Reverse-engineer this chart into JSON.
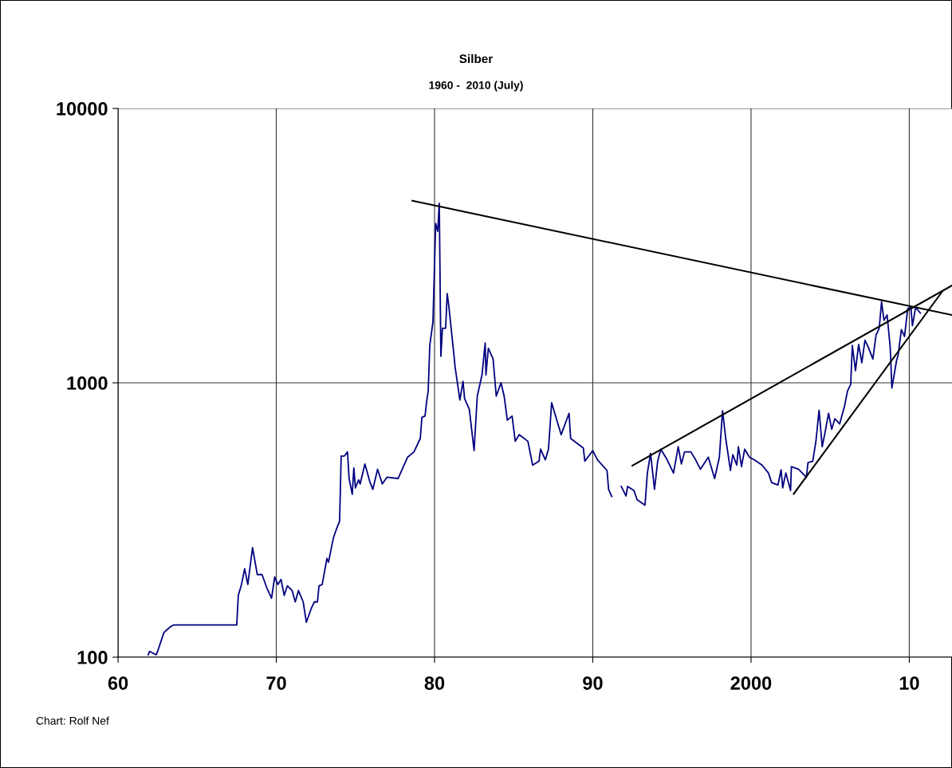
{
  "chart_data": {
    "type": "line",
    "title": "Silber",
    "subtitle": "1960 -  2010 (July)",
    "annotations": [
      "Chart: Rolf Nef"
    ],
    "log": "y",
    "grid": true,
    "xlim": [
      1960,
      2012.7
    ],
    "ylim": [
      100,
      10000
    ],
    "xticks": [
      {
        "value": 1960,
        "label": "60"
      },
      {
        "value": 1970,
        "label": "70"
      },
      {
        "value": 1980,
        "label": "80"
      },
      {
        "value": 1990,
        "label": "90"
      },
      {
        "value": 2000,
        "label": "2000"
      },
      {
        "value": 2010,
        "label": "10"
      }
    ],
    "yticks": [
      100,
      1000,
      10000
    ],
    "series": [
      {
        "color": "#000080",
        "x": [
          1961.9,
          1962.0,
          1962.4,
          1962.5,
          1962.9,
          1963.3,
          1963.5,
          1967.5,
          1967.6,
          1967.8,
          1968.0,
          1968.2,
          1968.5,
          1968.8,
          1969.1,
          1969.4,
          1969.7,
          1969.9,
          1970.1,
          1970.3,
          1970.5,
          1970.7,
          1971.0,
          1971.2,
          1971.4,
          1971.7,
          1971.9,
          1972.2,
          1972.4,
          1972.6,
          1972.7,
          1972.9,
          1973.2,
          1973.3,
          1973.6,
          1973.8,
          1974.0,
          1974.1,
          1974.3,
          1974.5,
          1974.6,
          1974.8,
          1974.9,
          1975.0,
          1975.2,
          1975.3,
          1975.6,
          1975.9,
          1976.1,
          1976.4,
          1976.7,
          1977.0,
          1977.7,
          1978.3,
          1978.7,
          1979.1,
          1979.2,
          1979.4,
          1979.5,
          1979.6,
          1979.7,
          1979.9,
          1980.07,
          1980.2,
          1980.3,
          1980.4,
          1980.5,
          1980.7,
          1980.8,
          1980.9,
          1981.2,
          1981.3,
          1981.6,
          1981.8,
          1981.9,
          1982.2,
          1982.5,
          1982.7,
          1983.0,
          1983.2,
          1983.25,
          1983.4,
          1983.7,
          1983.9,
          1984.2,
          1984.4,
          1984.6,
          1984.9,
          1985.1,
          1985.35,
          1985.9,
          1986.2,
          1986.6,
          1986.7,
          1987.0,
          1987.2,
          1987.4,
          1988.0,
          1988.5,
          1988.6,
          1989.4,
          1989.5,
          1990.0,
          1990.3,
          1990.9,
          1991.0,
          1991.2,
          1991.5,
          1991.8,
          1992.1,
          1992.2,
          1992.6,
          1992.8,
          1993.3,
          1993.45,
          1993.65,
          1993.9,
          1994.1,
          1994.3,
          1994.7,
          1995.1,
          1995.4,
          1995.6,
          1995.8,
          1996.2,
          1996.5,
          1996.8,
          1997.3,
          1997.7,
          1998.0,
          1998.2,
          1998.4,
          1998.7,
          1998.85,
          1999.1,
          1999.2,
          1999.4,
          1999.6,
          1999.9,
          2000.2,
          2000.7,
          2001.1,
          2001.3,
          2001.7,
          2001.9,
          2002.0,
          2002.2,
          2002.5,
          2002.55,
          2003.0,
          2003.5,
          2003.6,
          2003.9,
          2004.1,
          2004.3,
          2004.5,
          2004.7,
          2004.9,
          2005.1,
          2005.3,
          2005.6,
          2005.9,
          2006.1,
          2006.3,
          2006.4,
          2006.6,
          2006.8,
          2007.0,
          2007.2,
          2007.4,
          2007.7,
          2007.9,
          2008.1,
          2008.25,
          2008.4,
          2008.6,
          2008.8,
          2008.9,
          2009.2,
          2009.3,
          2009.5,
          2009.7,
          2009.9,
          2010.1,
          2010.2,
          2010.4,
          2010.7
        ],
        "values": [
          102,
          105,
          102,
          105,
          123,
          129,
          131,
          131,
          168,
          184,
          210,
          184,
          251,
          200,
          200,
          179,
          164,
          196,
          184,
          192,
          168,
          182,
          175,
          159,
          175,
          159,
          134,
          150,
          159,
          159,
          182,
          184,
          229,
          222,
          271,
          293,
          313,
          541,
          541,
          560,
          448,
          392,
          490,
          414,
          443,
          428,
          506,
          438,
          409,
          484,
          428,
          453,
          448,
          536,
          560,
          627,
          748,
          757,
          855,
          935,
          1368,
          1671,
          3811,
          3565,
          4508,
          1250,
          1581,
          1581,
          2113,
          1910,
          1306,
          1143,
          865,
          1012,
          875,
          800,
          566,
          894,
          1069,
          1397,
          1069,
          1336,
          1222,
          894,
          1000,
          894,
          731,
          757,
          612,
          647,
          612,
          501,
          518,
          573,
          524,
          573,
          846,
          647,
          774,
          627,
          579,
          518,
          566,
          524,
          479,
          409,
          385,
          null,
          419,
          387,
          419,
          405,
          375,
          358,
          469,
          553,
          409,
          518,
          573,
          524,
          469,
          585,
          506,
          560,
          560,
          524,
          484,
          536,
          448,
          536,
          791,
          627,
          479,
          547,
          501,
          585,
          495,
          573,
          536,
          524,
          501,
          469,
          433,
          424,
          482,
          414,
          469,
          405,
          495,
          484,
          453,
          512,
          518,
          612,
          794,
          585,
          670,
          774,
          677,
          740,
          708,
          818,
          935,
          988,
          1368,
          1106,
          1380,
          1183,
          1429,
          1352,
          1222,
          1493,
          1581,
          1976,
          1690,
          1766,
          1336,
          957,
          1208,
          1265,
          1563,
          1476,
          1866,
          1883,
          1615,
          1883,
          1795
        ]
      },
      {
        "color": "#000000",
        "x": [
          1978.6,
          2012.7
        ],
        "values": [
          4610,
          1766
        ]
      },
      {
        "color": "#000000",
        "x": [
          1992.5,
          2012.7
        ],
        "values": [
          499,
          2263
        ]
      },
      {
        "color": "#000000",
        "x": [
          2002.7,
          2012.1
        ],
        "values": [
          394,
          2158
        ]
      }
    ]
  }
}
